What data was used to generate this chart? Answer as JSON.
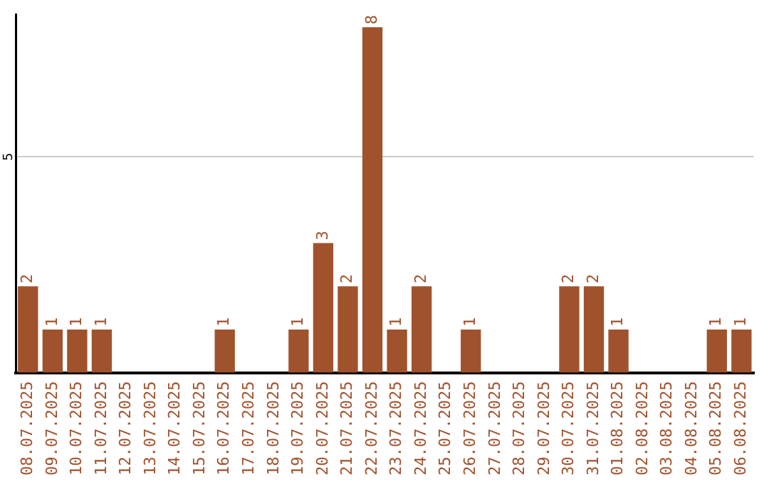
{
  "chart_data": {
    "type": "bar",
    "categories": [
      "08.07.2025",
      "09.07.2025",
      "10.07.2025",
      "11.07.2025",
      "12.07.2025",
      "13.07.2025",
      "14.07.2025",
      "15.07.2025",
      "16.07.2025",
      "17.07.2025",
      "18.07.2025",
      "19.07.2025",
      "20.07.2025",
      "21.07.2025",
      "22.07.2025",
      "23.07.2025",
      "24.07.2025",
      "25.07.2025",
      "26.07.2025",
      "27.07.2025",
      "28.07.2025",
      "29.07.2025",
      "30.07.2025",
      "31.07.2025",
      "01.08.2025",
      "02.08.2025",
      "03.08.2025",
      "04.08.2025",
      "05.08.2025",
      "06.08.2025"
    ],
    "values": [
      2,
      1,
      1,
      1,
      0,
      0,
      0,
      0,
      1,
      0,
      0,
      1,
      3,
      2,
      8,
      1,
      2,
      0,
      1,
      0,
      0,
      0,
      2,
      2,
      1,
      0,
      0,
      0,
      1,
      1
    ],
    "value_labels": [
      "2",
      "1",
      "1",
      "1",
      null,
      null,
      null,
      null,
      "1",
      null,
      null,
      "1",
      "3",
      "2",
      "8",
      "1",
      "2",
      null,
      "1",
      null,
      null,
      null,
      "2",
      "2",
      "1",
      null,
      null,
      null,
      "1",
      "1"
    ],
    "color": "#a0522d",
    "ylim": [
      0,
      8.3
    ],
    "yticks": [
      5
    ],
    "grid": "y",
    "legend": false
  }
}
